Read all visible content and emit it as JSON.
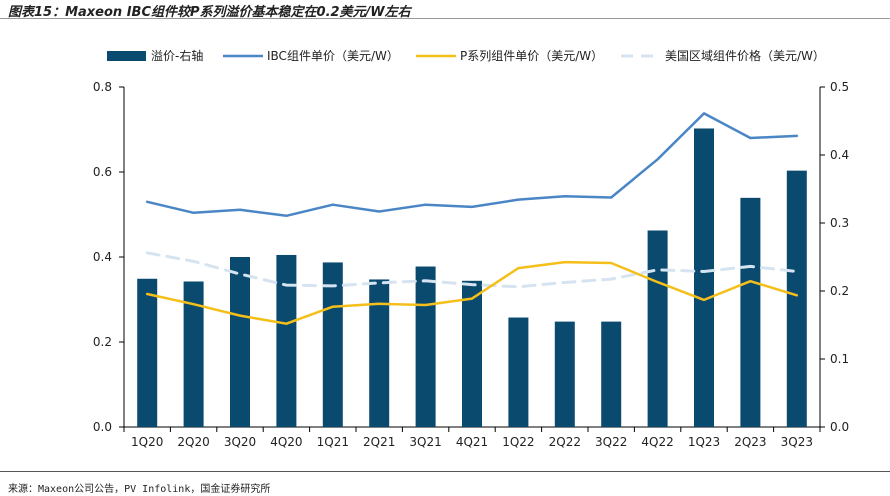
{
  "figure_title": "图表15：Maxeon IBC组件较P系列溢价基本稳定在0.2美元/W左右",
  "source_note": "来源：Maxeon公司公告，PV Infolink，国金证券研究所",
  "colors": {
    "premium_bar": "#0b4a6f",
    "ibc_line": "#4a86c5",
    "p_series_line": "#f5bf1a",
    "us_line": "#d6e4f2",
    "axis": "#000000",
    "text": "#222222"
  },
  "chart_data": {
    "type": "bar",
    "title": "",
    "categories": [
      "1Q20",
      "2Q20",
      "3Q20",
      "4Q20",
      "1Q21",
      "2Q21",
      "3Q21",
      "4Q21",
      "1Q22",
      "2Q22",
      "3Q22",
      "4Q22",
      "1Q23",
      "2Q23",
      "3Q23"
    ],
    "left_axis": {
      "ylim": [
        0,
        0.8
      ],
      "ticks": [
        "0.0",
        "0.2",
        "0.4",
        "0.6",
        "0.8"
      ],
      "tick_values": [
        0,
        0.2,
        0.4,
        0.6,
        0.8
      ]
    },
    "right_axis": {
      "ylim": [
        0,
        0.5
      ],
      "ticks": [
        "0.0",
        "0.1",
        "0.2",
        "0.3",
        "0.4",
        "0.5"
      ],
      "tick_values": [
        0,
        0.1,
        0.2,
        0.3,
        0.4,
        0.5
      ]
    },
    "series": [
      {
        "name": "溢价-右轴",
        "type": "bar",
        "axis": "right",
        "values": [
          0.218,
          0.214,
          0.25,
          0.253,
          0.242,
          0.217,
          0.236,
          0.215,
          0.161,
          0.155,
          0.155,
          0.289,
          0.439,
          0.337,
          0.377
        ]
      },
      {
        "name": "IBC组件单价（美元/W）",
        "type": "line",
        "axis": "left",
        "values": [
          0.53,
          0.504,
          0.511,
          0.497,
          0.523,
          0.507,
          0.523,
          0.518,
          0.535,
          0.543,
          0.54,
          0.63,
          0.738,
          0.68,
          0.685
        ]
      },
      {
        "name": "P系列组件单价（美元/W）",
        "type": "line",
        "axis": "left",
        "values": [
          0.313,
          0.289,
          0.262,
          0.243,
          0.283,
          0.29,
          0.287,
          0.302,
          0.374,
          0.388,
          0.386,
          0.341,
          0.299,
          0.343,
          0.31
        ]
      },
      {
        "name": "美国区域组件价格（美元/W）",
        "type": "line",
        "dashed": true,
        "axis": "left",
        "values": [
          0.41,
          0.39,
          0.36,
          0.334,
          0.332,
          0.339,
          0.344,
          0.335,
          0.33,
          0.34,
          0.348,
          0.37,
          0.366,
          0.378,
          0.366
        ]
      }
    ],
    "legend_position": "top",
    "grid": false
  }
}
